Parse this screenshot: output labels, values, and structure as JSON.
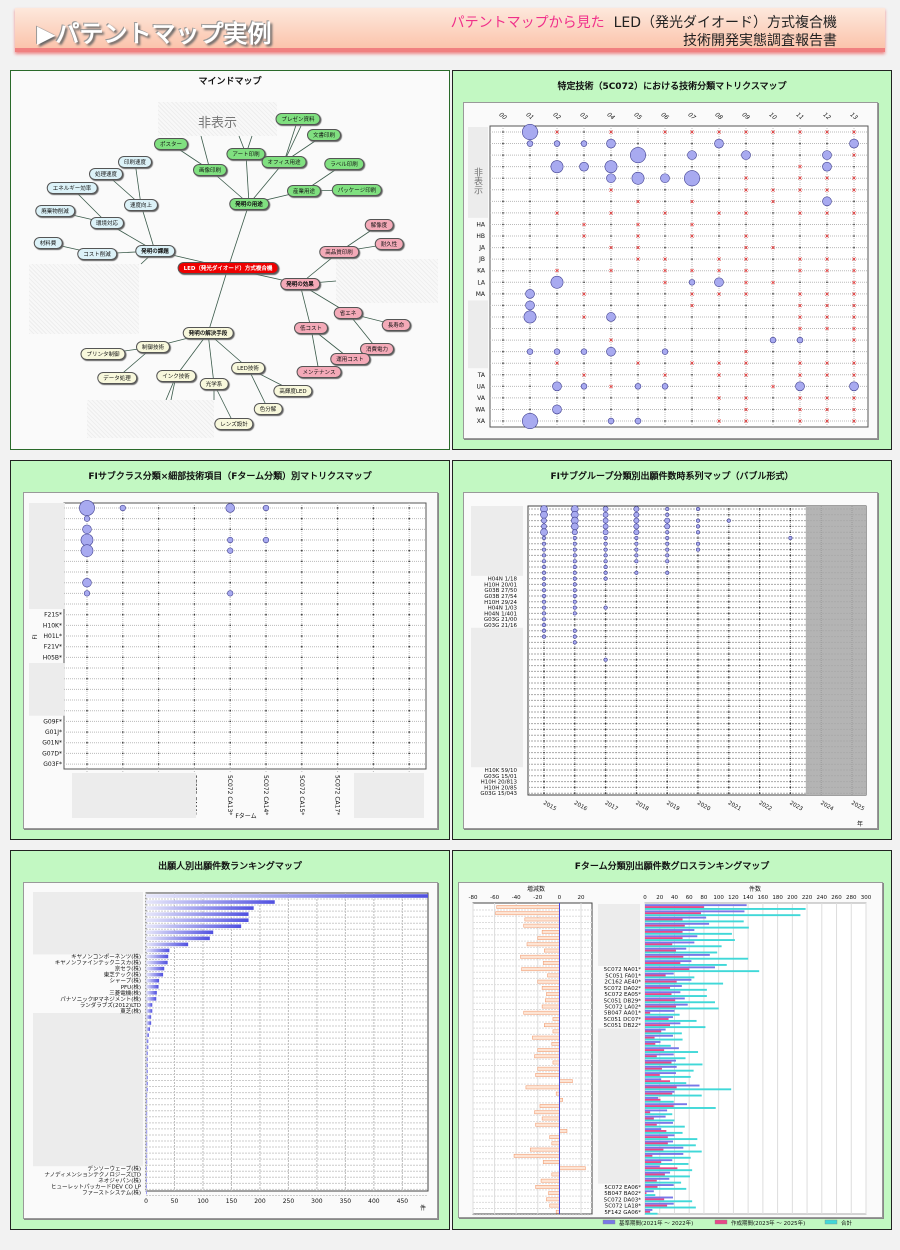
{
  "header": {
    "title": "▶パテントマップ実例",
    "subtitle_pink": "パテントマップから見た",
    "subtitle_main": "LED（発光ダイオード）方式複合機",
    "subtitle_line2": "技術開発実態調査報告書"
  },
  "mindmap": {
    "title": "マインドマップ",
    "hidden_label": "非表示",
    "nodes": {
      "center": "LED（発光ダイオード）方式複合機",
      "use": "発明の用途",
      "img": "画像印刷",
      "poster": "ポスター",
      "art": "アート印刷",
      "office": "オフィス用途",
      "pres": "プレゼン資料",
      "doc": "文書印刷",
      "ind": "産業用途",
      "label": "ラベル印刷",
      "pkg": "パッケージ印刷",
      "task": "発明の課題",
      "speed": "速度向上",
      "pspeed": "印刷速度",
      "proc": "処理速度",
      "env": "環境対応",
      "energy": "エネルギー効率",
      "waste": "廃棄物削減",
      "cost": "コスト削減",
      "mat": "材料費",
      "eff": "発明の効果",
      "hq": "高品質印刷",
      "res": "解像度",
      "dur": "耐久性",
      "save": "省エネ",
      "life": "長寿命",
      "power": "消費電力",
      "low": "低コスト",
      "run": "運用コスト",
      "maint": "メンテナンス",
      "sol": "発明の解決手段",
      "ctrl": "制御技術",
      "pctrl": "プリンタ制御",
      "data": "データ処理",
      "ink": "インク技術",
      "opt": "光学系",
      "lens": "レンズ設計",
      "led": "LED技術",
      "hb": "高輝度LED",
      "sep": "色分解"
    }
  },
  "chart_data": [
    {
      "type": "matrix",
      "title": "特定技術（5C072）における技術分類マトリクスマップ",
      "hidden_label": "非表示",
      "columns": [
        "00",
        "01",
        "02",
        "03",
        "04",
        "05",
        "06",
        "07",
        "08",
        "09",
        "10",
        "11",
        "12",
        "13"
      ],
      "rows": [
        null,
        null,
        null,
        null,
        null,
        null,
        null,
        null,
        "HA",
        "HB",
        "JA",
        "JB",
        "KA",
        "LA",
        "MA",
        null,
        null,
        null,
        null,
        null,
        null,
        "TA",
        "UA",
        "VA",
        "WA",
        "XA"
      ],
      "cells": [
        ".4x.x.xxxxxxxx",
        ".1112...2....2",
        ".....4.2.2..2x",
        "..323......x2.",
        "....2324.x.xxx",
        "....x....xxxxx",
        ".....x.x..x.2.",
        "..x.x.x.xx.xxx",
        "...x.x.x......",
        "...x.x.x.x..x.",
        "....xx...xx...",
        ".....xx.xx.xxx",
        "..x.x.xxxx.xxx",
        "..3...x12xx..x",
        ".2.x...xxx.xxx",
        ".2.....x...xxx",
        ".3.x2......xxx",
        "...........xxx",
        "....x.....11.x",
        ".1112.1..x....",
        "..x..x.xxx.xxx",
        "...x..x.xx.xxx",
        "..21x11...x2.2",
        "........xx.xxx",
        "..2......x.xxx",
        ".4..11..xx.xxx"
      ]
    },
    {
      "type": "matrix",
      "title": "FIサブクラス分類×細部技術項目（Fターム分類）別マトリクスマップ",
      "ylabel": "FI",
      "xlabel": "Fターム",
      "columns": [
        null,
        null,
        null,
        "5C072 CA11*",
        "5C072 CA13*",
        "5C072 CA14*",
        "5C072 CA15*",
        "5C072 CA17*",
        null,
        null
      ],
      "rows": [
        null,
        null,
        null,
        null,
        null,
        null,
        null,
        null,
        null,
        null,
        "F21S*",
        "H10K*",
        "H01L*",
        "F21V*",
        "H05B*",
        null,
        null,
        null,
        null,
        null,
        "G09F*",
        "G01J*",
        "G01N*",
        "G07D*",
        "G03F*"
      ],
      "cells": [
        "41..21....",
        "1.........",
        "2.........",
        "3...11....",
        "3...1.....",
        "..........",
        "..........",
        "2.........",
        "1...1.....",
        "..........",
        "..........",
        "..........",
        "..........",
        "..........",
        "..........",
        "..........",
        "..........",
        "..........",
        "..........",
        "..........",
        "..........",
        "..........",
        "..........",
        "..........",
        ".........."
      ]
    },
    {
      "type": "bubble",
      "title": "FIサブグループ分類別出願件数時系列マップ（バブル形式）",
      "xlabel": "年",
      "x": [
        "2015",
        "2016",
        "2017",
        "2018",
        "2019",
        "2020",
        "2021",
        "2022",
        "2023",
        "2024",
        "2025"
      ],
      "shaded_from": "2024",
      "rows": [
        null,
        null,
        null,
        null,
        null,
        null,
        null,
        null,
        null,
        null,
        null,
        null,
        "H04N 1/18",
        "H10H 20/01",
        "G03B 27/50",
        "G03B 27/54",
        "H10H 29/24",
        "H04N 1/03",
        "H04N 1/401",
        "G03G 21/00",
        "G03G 21/16",
        null,
        null,
        null,
        null,
        null,
        null,
        null,
        null,
        null,
        null,
        null,
        null,
        null,
        null,
        null,
        null,
        null,
        null,
        null,
        null,
        null,
        null,
        null,
        null,
        "H10K 59/10",
        "G03G 15/01",
        "H10H 20/813",
        "H10H 20/85",
        "G03G 15/043"
      ],
      "cells": [
        "33221100000",
        "33221000000",
        "23222110000",
        "23222100000",
        "32221100000",
        "11111000100",
        "11111100000",
        "11111100000",
        "11111000000",
        "11111000000",
        "11100000000",
        "11111000000",
        "11100000000",
        "11000000000",
        "11000000000",
        "11000000000",
        "11000000000",
        "11100000000",
        "11000000000",
        "10000000000",
        "10000000000",
        "11000000000",
        "11000000000",
        "01000000000",
        "00000000000",
        "00000000000",
        "00100000000",
        "00000000000",
        "00000000000",
        "00000000000",
        "00000000000",
        "00000000000",
        "00000000000",
        "00000000000",
        "00000000000",
        "00000000000",
        "00000000000",
        "00000000000",
        "00000000000",
        "00000000000",
        "00000000000",
        "00000000000",
        "00000000000",
        "00000000000",
        "00000000000",
        "00000000000",
        "00000000000",
        "00000000000",
        "00000000000",
        "00000000000"
      ]
    },
    {
      "type": "bar",
      "title": "出願人別出願件数ランキングマップ",
      "xlabel": "件",
      "xlim": [
        0,
        495
      ],
      "xticks": [
        0,
        50,
        100,
        150,
        200,
        250,
        300,
        350,
        400,
        450
      ],
      "categories": [
        null,
        null,
        null,
        null,
        null,
        null,
        null,
        null,
        null,
        null,
        "キヤノンコンポーネンツ(株)",
        "キヤノンファインテックニスカ(株)",
        "京セラ(株)",
        "東芝テック(株)",
        "シャープ(株)",
        "PFU(株)",
        "三菱電機(株)",
        "パナソニックIPマネジメント(株)",
        "ランダラブズ(2012)LTD",
        "東芝(株)",
        null,
        null,
        null,
        null,
        null,
        null,
        null,
        null,
        null,
        null,
        null,
        null,
        null,
        null,
        null,
        null,
        null,
        null,
        null,
        null,
        null,
        null,
        null,
        null,
        null,
        "デンソーウェーブ(株)",
        "ナノディメンションテクノロジーズLTD",
        "ネオジャパン(株)",
        "ヒューレットパッカードDEV CO LP",
        "ファーストシステム(株)"
      ],
      "values": [
        495,
        226,
        189,
        180,
        180,
        167,
        118,
        112,
        74,
        41,
        39,
        38,
        32,
        30,
        23,
        22,
        19,
        18,
        11,
        11,
        9,
        9,
        7,
        5,
        4,
        4,
        3,
        3,
        3,
        3,
        3,
        3,
        3,
        2,
        2,
        2,
        2,
        2,
        2,
        2,
        2,
        2,
        2,
        2,
        2,
        1,
        1,
        1,
        1,
        1
      ]
    },
    {
      "type": "bar",
      "title": "Fターム分類別出願件数グロスランキングマップ",
      "left_label": "増減数",
      "right_label": "件数",
      "left_xlim": [
        -80,
        20
      ],
      "left_ticks": [
        -80,
        -60,
        -40,
        -20,
        0,
        20
      ],
      "right_xlim": [
        0,
        300
      ],
      "right_ticks": [
        0,
        20,
        40,
        60,
        80,
        100,
        120,
        140,
        160,
        180,
        200,
        220,
        240,
        260,
        280,
        300
      ],
      "legend": [
        "基準期間(2021年 ～ 2022年)",
        "作成期間(2023年 ～ 2025年)",
        "合計"
      ],
      "colors": {
        "base": "#7878e8",
        "current": "#e84888",
        "total": "#40d8d8",
        "diff": "#f09060"
      },
      "categories": [
        null,
        null,
        null,
        null,
        null,
        null,
        null,
        null,
        null,
        null,
        "5C072 NA01*",
        "5C051 FA01*",
        "2C162 AE40*",
        "5C072 DA02*",
        "5C072 EA05*",
        "5C051 DB29*",
        "5C072 LA02*",
        "5B047 AA01*",
        "5C051 DC07*",
        "5C051 DB22*",
        null,
        null,
        null,
        null,
        null,
        null,
        null,
        null,
        null,
        null,
        null,
        null,
        null,
        null,
        null,
        null,
        null,
        null,
        null,
        null,
        null,
        null,
        null,
        null,
        null,
        "5C072 EA06*",
        "5B047 BA02*",
        "5C072 DA03*",
        "5C072 LA18*",
        "5F142 GA06*"
      ],
      "series": [
        {
          "name": "基準期間",
          "values": [
            138,
            135,
            83,
            87,
            67,
            71,
            67,
            56,
            88,
            63,
            95,
            39,
            63,
            50,
            48,
            54,
            58,
            40,
            38,
            48,
            28,
            38,
            21,
            46,
            39,
            42,
            43,
            42,
            22,
            74,
            40,
            18,
            57,
            30,
            28,
            38,
            22,
            40,
            38,
            52,
            52,
            37,
            20,
            34,
            33,
            39,
            12,
            38,
            39,
            10
          ]
        },
        {
          "name": "作成期間",
          "values": [
            80,
            76,
            51,
            54,
            51,
            51,
            37,
            42,
            52,
            48,
            60,
            28,
            43,
            34,
            36,
            41,
            42,
            7,
            32,
            34,
            22,
            13,
            14,
            26,
            16,
            36,
            23,
            20,
            34,
            43,
            37,
            21,
            39,
            7,
            12,
            16,
            29,
            31,
            31,
            25,
            10,
            22,
            44,
            27,
            16,
            17,
            2,
            26,
            30,
            7
          ]
        }
      ]
    }
  ]
}
